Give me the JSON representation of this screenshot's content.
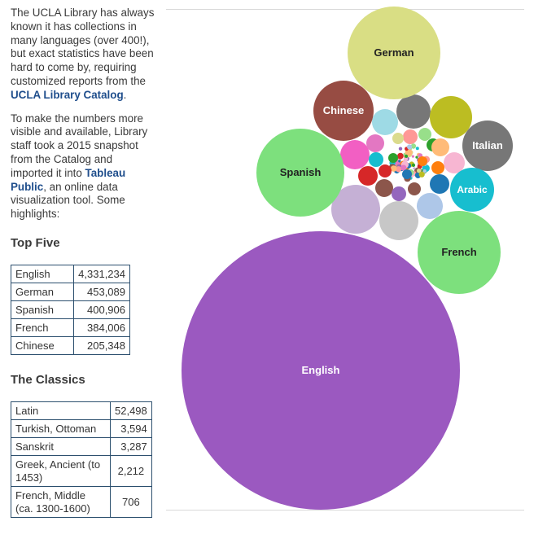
{
  "intro": {
    "p1_before": "The UCLA Library has always known it has collections in many languages (over 400!), but exact statistics have been hard to come by, requiring customized reports from the ",
    "p1_link": "UCLA Library Catalog",
    "p1_after": ".",
    "p2_before": "To make the numbers more visible and available, Library staff took a 2015 snapshot from the Catalog and imported it into ",
    "p2_link": "Tableau Public",
    "p2_after": ", an online data visualization tool. Some highlights:"
  },
  "top_five": {
    "title": "Top Five",
    "rows": [
      {
        "language": "English",
        "count": "4,331,234"
      },
      {
        "language": "German",
        "count": "453,089"
      },
      {
        "language": "Spanish",
        "count": "400,906"
      },
      {
        "language": "French",
        "count": "384,006"
      },
      {
        "language": "Chinese",
        "count": "205,348"
      }
    ]
  },
  "classics": {
    "title": "The Classics",
    "rows": [
      {
        "language": "Latin",
        "count": "52,498"
      },
      {
        "language": "Turkish, Ottoman",
        "count": "3,594"
      },
      {
        "language": "Sanskrit",
        "count": "3,287"
      },
      {
        "language": "Greek, Ancient (to 1453)",
        "count": "2,212"
      },
      {
        "language": "French, Middle (ca. 1300-1600)",
        "count": "706"
      }
    ]
  },
  "chart_data": {
    "type": "bubble",
    "title": "",
    "labeled_bubbles": [
      {
        "label": "English",
        "value": 4331234,
        "color": "#9b59c0"
      },
      {
        "label": "German",
        "value": 453089,
        "color": "#d9de84"
      },
      {
        "label": "Spanish",
        "value": 400906,
        "color": "#7de07d"
      },
      {
        "label": "French",
        "value": 384006,
        "color": "#7de07d"
      },
      {
        "label": "Chinese",
        "value": 205348,
        "color": "#974c43"
      },
      {
        "label": "Italian",
        "value": 140000,
        "color": "#777777"
      },
      {
        "label": "Arabic",
        "value": 110000,
        "color": "#17becf"
      }
    ],
    "unlabeled_bubble_colors": [
      "#777777",
      "#bcbd22",
      "#9edae5",
      "#f25fc3",
      "#c5b0d5",
      "#c7c7c7",
      "#aec7e8",
      "#f7b6d2",
      "#d62728",
      "#ff7f0e",
      "#2ca02c",
      "#1f77b4",
      "#8c564b",
      "#9467bd",
      "#e377c2",
      "#17becf",
      "#ff9896",
      "#98df8a",
      "#ffbb78",
      "#dbdb8d"
    ]
  }
}
